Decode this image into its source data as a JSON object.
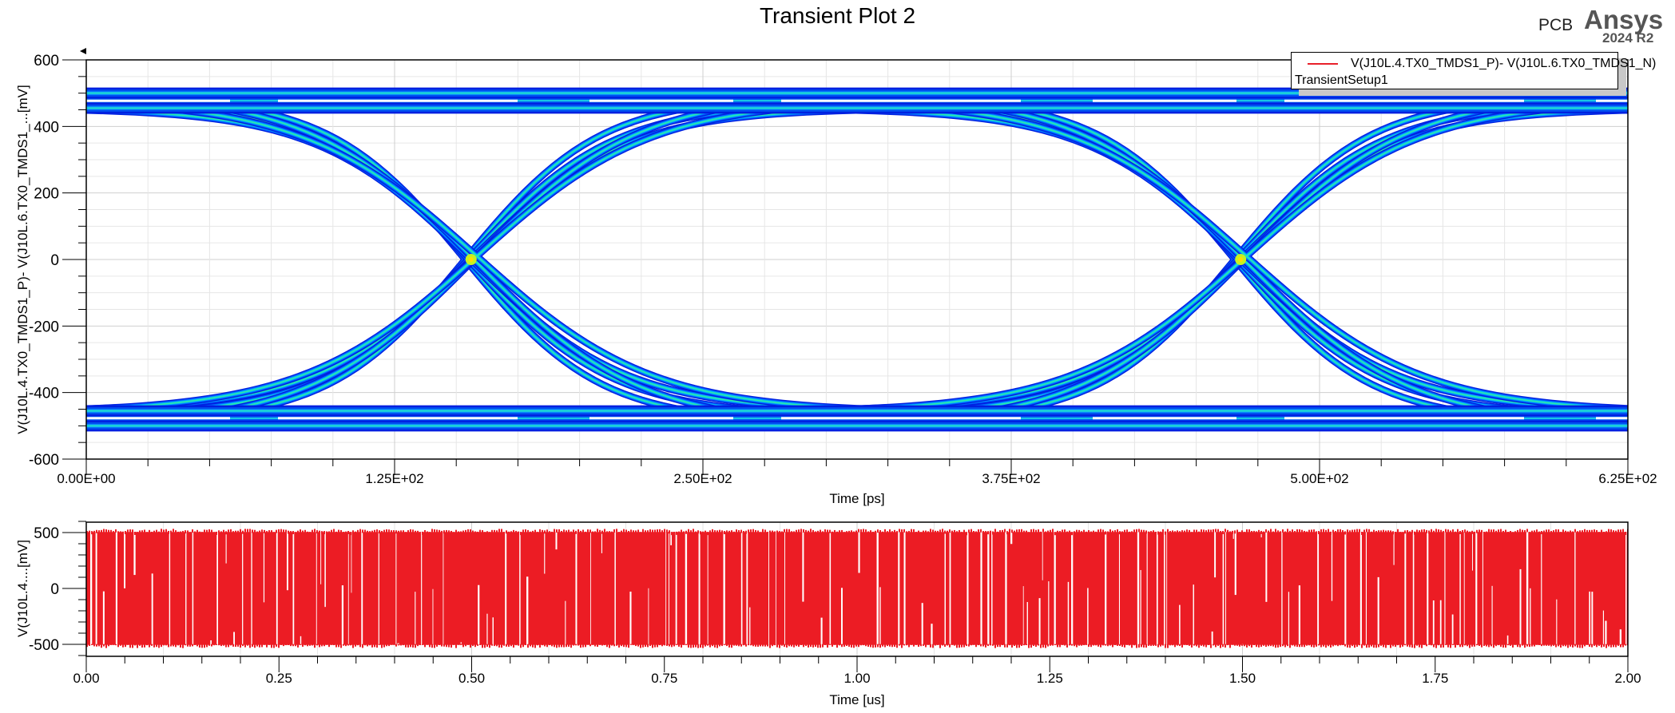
{
  "title": "Transient  Plot 2",
  "brand": {
    "product": "PCB",
    "name": "Ansys",
    "version": "2024 R2"
  },
  "legend": {
    "trace_label": "V(J10L.4.TX0_TMDS1_P)- V(J10L.6.TX0_TMDS1_N)",
    "setup_label": "TransientSetup1",
    "trace_color": "#e8202a"
  },
  "eye_plot": {
    "ylabel": "V(J10L.4.TX0_TMDS1_P)- V(J10L.6.TX0_TMDS1_...[mV]",
    "xlabel": "Time [ps]",
    "yticks": [
      "600",
      "400",
      "200",
      "0",
      "-200",
      "-400",
      "-600"
    ],
    "xticks": [
      "0.00E+00",
      "1.25E+02",
      "2.50E+02",
      "3.75E+02",
      "5.00E+02",
      "6.25E+02"
    ]
  },
  "transient_plot": {
    "ylabel": "V(J10L.4....[mV]",
    "xlabel": "Time [us]",
    "yticks": [
      "500",
      "0",
      "-500"
    ],
    "xticks": [
      "0.00",
      "0.25",
      "0.50",
      "0.75",
      "1.00",
      "1.25",
      "1.50",
      "1.75",
      "2.00"
    ]
  },
  "chart_data": [
    {
      "type": "heatmap",
      "subtype": "eye-diagram",
      "title": "Transient  Plot 2",
      "xlabel": "Time [ps]",
      "ylabel": "V(J10L.4.TX0_TMDS1_P)- V(J10L.6.TX0_TMDS1_...[mV]",
      "xlim": [
        0,
        625
      ],
      "ylim": [
        -600,
        600
      ],
      "x_ticks": [
        0,
        125,
        250,
        375,
        500,
        625
      ],
      "y_ticks": [
        -600,
        -400,
        -200,
        0,
        200,
        400,
        600
      ],
      "grid": true,
      "legend_position": "top-right",
      "series": [
        {
          "name": "V(J10L.4.TX0_TMDS1_P)- V(J10L.6.TX0_TMDS1_N)",
          "setup": "TransientSetup1"
        }
      ],
      "eye_features": {
        "high_level_mV": [
          450,
          500
        ],
        "low_level_mV": [
          -500,
          -450
        ],
        "crossing_points_ps": [
          156,
          468
        ],
        "crossing_level_mV": 0,
        "unit_interval_ps": 312,
        "colormap": "density (blue-cyan-green-yellow-red)"
      }
    },
    {
      "type": "line",
      "title": "",
      "xlabel": "Time [us]",
      "ylabel": "V(J10L.4....[mV]",
      "xlim": [
        0,
        2.0
      ],
      "ylim": [
        -600,
        600
      ],
      "x_ticks": [
        0,
        0.25,
        0.5,
        0.75,
        1.0,
        1.25,
        1.5,
        1.75,
        2.0
      ],
      "y_ticks": [
        -500,
        0,
        500
      ],
      "grid": true,
      "series": [
        {
          "name": "V(J10L.4.TX0_TMDS1_P)- V(J10L.6.TX0_TMDS1_N)",
          "color": "#e8202a",
          "description": "random NRZ bit stream switching between about -500 mV and +500 mV"
        }
      ]
    }
  ]
}
